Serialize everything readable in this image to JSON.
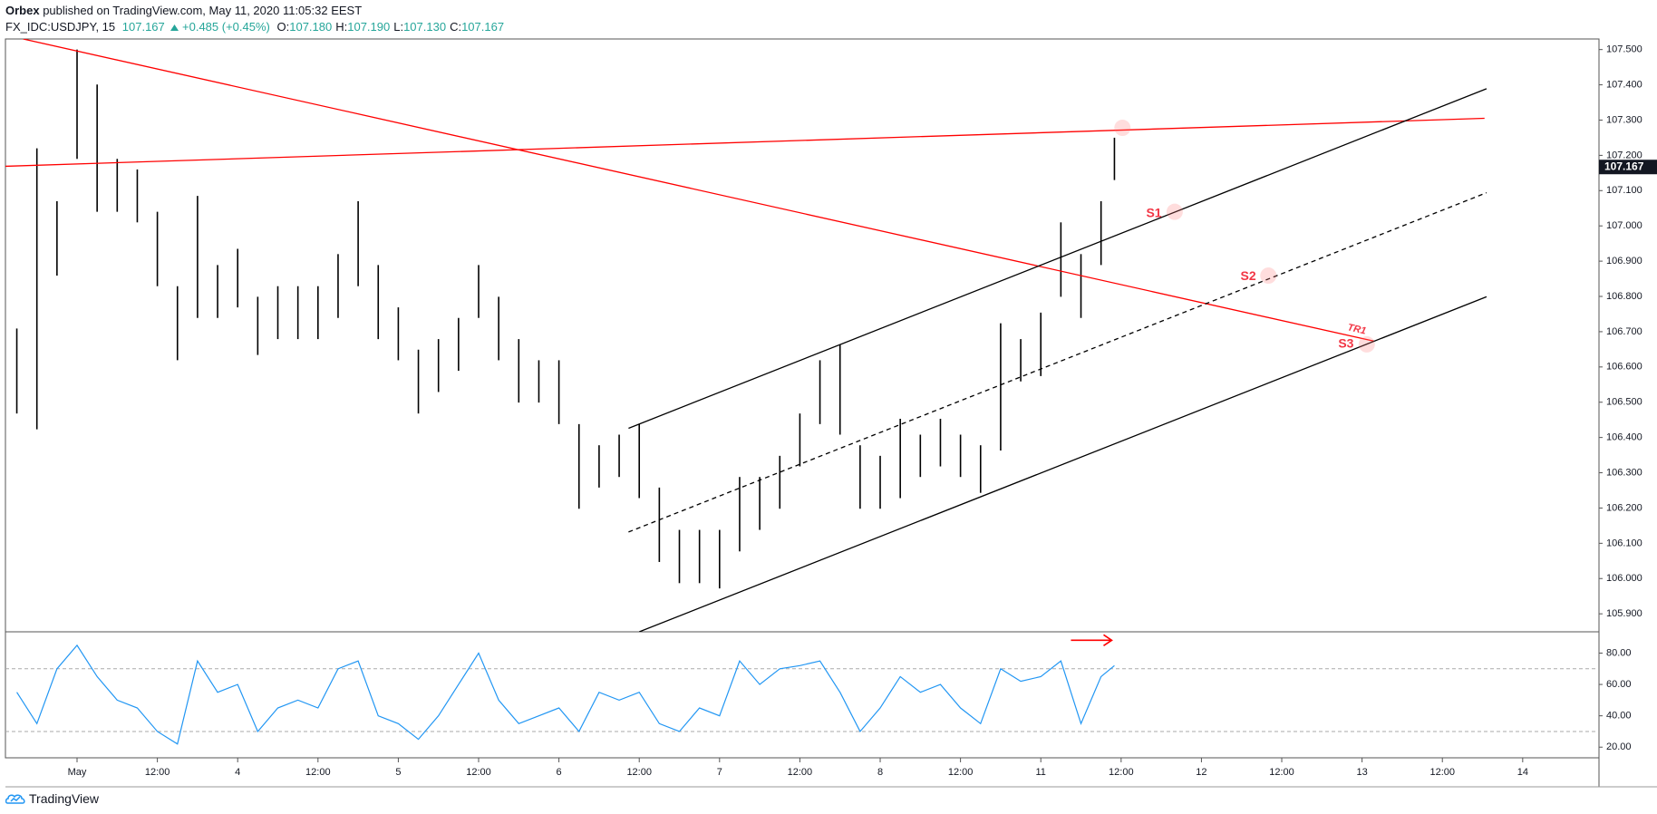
{
  "header": {
    "author": "Orbex",
    "published": "published on TradingView.com, May 11, 2020 11:05:32 EEST",
    "symbol": "FX_IDC:USDJPY, 15",
    "last": "107.167",
    "change": "+0.485 (+0.45%)",
    "ohlc": [
      {
        "label": "O:",
        "value": "107.180"
      },
      {
        "label": "H:",
        "value": "107.190"
      },
      {
        "label": "L:",
        "value": "107.130"
      },
      {
        "label": "C:",
        "value": "107.167"
      }
    ]
  },
  "chart_data": [
    {
      "type": "ohlc",
      "color": "#000000",
      "x": [
        -9,
        -6,
        -3,
        0,
        3,
        6,
        9,
        12,
        15,
        18,
        21,
        24,
        27,
        30,
        33,
        36,
        39,
        42,
        45,
        48,
        51,
        54,
        57,
        60,
        63,
        66,
        69,
        72,
        75,
        78,
        81,
        84,
        87,
        90,
        93,
        96,
        99,
        102,
        105,
        108,
        111,
        114,
        117,
        120,
        123,
        126,
        129,
        132,
        135,
        138,
        141,
        144,
        147,
        150,
        153,
        155
      ],
      "high": [
        106.709,
        107.22,
        107.07,
        107.5,
        107.401,
        107.19,
        107.16,
        107.04,
        106.829,
        107.085,
        106.889,
        106.935,
        106.799,
        106.829,
        106.829,
        106.829,
        106.92,
        107.07,
        106.889,
        106.769,
        106.649,
        106.679,
        106.739,
        106.889,
        106.799,
        106.679,
        106.619,
        106.619,
        106.438,
        106.378,
        106.408,
        106.438,
        106.258,
        106.138,
        106.138,
        106.138,
        106.288,
        106.288,
        106.348,
        106.468,
        106.619,
        106.664,
        106.378,
        106.348,
        106.453,
        106.408,
        106.453,
        106.408,
        106.378,
        106.724,
        106.679,
        106.754,
        107.01,
        106.92,
        107.07,
        107.25
      ],
      "low": [
        106.468,
        106.423,
        106.859,
        107.19,
        107.04,
        107.04,
        107.01,
        106.829,
        106.619,
        106.739,
        106.739,
        106.769,
        106.634,
        106.679,
        106.679,
        106.679,
        106.739,
        106.829,
        106.679,
        106.619,
        106.468,
        106.529,
        106.589,
        106.739,
        106.619,
        106.499,
        106.499,
        106.438,
        106.198,
        106.258,
        106.288,
        106.228,
        106.047,
        105.987,
        105.987,
        105.972,
        106.077,
        106.138,
        106.198,
        106.318,
        106.438,
        106.408,
        106.198,
        106.198,
        106.228,
        106.288,
        106.318,
        106.288,
        106.243,
        106.363,
        106.559,
        106.574,
        106.799,
        106.739,
        106.889,
        107.13
      ],
      "xlim": [
        -10.7,
        227.4
      ],
      "xticks": [
        {
          "value": 0,
          "label": "May"
        },
        {
          "value": 12,
          "label": "12:00"
        },
        {
          "value": 24,
          "label": "4"
        },
        {
          "value": 36,
          "label": "12:00"
        },
        {
          "value": 48,
          "label": "5"
        },
        {
          "value": 60,
          "label": "12:00"
        },
        {
          "value": 72,
          "label": "6"
        },
        {
          "value": 84,
          "label": "12:00"
        },
        {
          "value": 96,
          "label": "7"
        },
        {
          "value": 108,
          "label": "12:00"
        },
        {
          "value": 120,
          "label": "8"
        },
        {
          "value": 132,
          "label": "12:00"
        },
        {
          "value": 144,
          "label": "11"
        },
        {
          "value": 156,
          "label": "12:00"
        },
        {
          "value": 168,
          "label": "12"
        },
        {
          "value": 180,
          "label": "12:00"
        },
        {
          "value": 192,
          "label": "13"
        },
        {
          "value": 204,
          "label": "12:00"
        },
        {
          "value": 216,
          "label": "14"
        }
      ],
      "ylim": [
        105.849,
        107.53
      ],
      "yticks": [
        {
          "value": 107.5,
          "label": "107.500"
        },
        {
          "value": 107.4,
          "label": "107.400"
        },
        {
          "value": 107.3,
          "label": "107.300"
        },
        {
          "value": 107.2,
          "label": "107.200"
        },
        {
          "value": 107.1,
          "label": "107.100"
        },
        {
          "value": 107.0,
          "label": "107.000"
        },
        {
          "value": 106.9,
          "label": "106.900"
        },
        {
          "value": 106.8,
          "label": "106.800"
        },
        {
          "value": 106.7,
          "label": "106.700"
        },
        {
          "value": 106.6,
          "label": "106.600"
        },
        {
          "value": 106.5,
          "label": "106.500"
        },
        {
          "value": 106.4,
          "label": "106.400"
        },
        {
          "value": 106.3,
          "label": "106.300"
        },
        {
          "value": 106.2,
          "label": "106.200"
        },
        {
          "value": 106.1,
          "label": "106.100"
        },
        {
          "value": 106.0,
          "label": "106.000"
        },
        {
          "value": 105.9,
          "label": "105.900"
        }
      ],
      "last_price": {
        "value": 107.167,
        "label": "107.167"
      },
      "lines": [
        {
          "x": [
            -8.05,
            193.8
          ],
          "y": [
            107.53,
            106.673
          ],
          "color": "#ff0000",
          "dash": false
        },
        {
          "x": [
            -10.74,
            210.3
          ],
          "y": [
            107.169,
            107.305
          ],
          "color": "#ff0000",
          "dash": false
        },
        {
          "x": [
            82.4,
            210.6
          ],
          "y": [
            106.426,
            107.389
          ],
          "color": "#000000",
          "dash": false
        },
        {
          "x": [
            82.4,
            210.6
          ],
          "y": [
            106.132,
            107.094
          ],
          "color": "#000000",
          "dash": true
        },
        {
          "x": [
            84.0,
            210.6
          ],
          "y": [
            105.849,
            106.799
          ],
          "color": "#000000",
          "dash": false
        }
      ],
      "labels": [
        {
          "text": "S1",
          "x": 160.9,
          "y": 107.034
        },
        {
          "text": "S2",
          "x": 175.0,
          "y": 106.856
        },
        {
          "text": "S3",
          "x": 189.6,
          "y": 106.664
        },
        {
          "text": "TR1",
          "x": 191.2,
          "y": 106.706
        }
      ],
      "markers": [
        {
          "x": 156.2,
          "y": 107.278
        },
        {
          "x": 164.0,
          "y": 107.04
        },
        {
          "x": 178.0,
          "y": 106.859
        },
        {
          "x": 192.7,
          "y": 106.664
        }
      ]
    },
    {
      "type": "line",
      "color": "#2196f3",
      "x": [
        -9,
        -6,
        -3,
        0,
        3,
        6,
        9,
        12,
        15,
        18,
        21,
        24,
        27,
        30,
        33,
        36,
        39,
        42,
        45,
        48,
        51,
        54,
        57,
        60,
        63,
        66,
        69,
        72,
        75,
        78,
        81,
        84,
        87,
        90,
        93,
        96,
        99,
        102,
        105,
        108,
        111,
        114,
        117,
        120,
        123,
        126,
        129,
        132,
        135,
        138,
        141,
        144,
        147,
        150,
        153,
        155
      ],
      "values": [
        55,
        35,
        70,
        85,
        65,
        50,
        45,
        30,
        22,
        75,
        55,
        60,
        30,
        45,
        50,
        45,
        70,
        75,
        40,
        35,
        25,
        40,
        60,
        80,
        50,
        35,
        40,
        45,
        30,
        55,
        50,
        55,
        35,
        30,
        45,
        40,
        75,
        60,
        70,
        72,
        75,
        55,
        30,
        45,
        65,
        55,
        60,
        45,
        35,
        70,
        62,
        65,
        75,
        35,
        65,
        72
      ],
      "xlim": [
        -10.7,
        227.4
      ],
      "ylim": [
        13.2,
        93.6
      ],
      "yticks": [
        {
          "value": 80,
          "label": "80.00"
        },
        {
          "value": 60,
          "label": "60.00"
        },
        {
          "value": 40,
          "label": "40.00"
        },
        {
          "value": 20,
          "label": "20.00"
        }
      ],
      "levels": [
        70,
        30
      ],
      "arrow": {
        "x": [
          148.5,
          154.6
        ],
        "y": 88.2,
        "color": "#ff0000"
      }
    }
  ],
  "footer": {
    "brand": "TradingView"
  }
}
